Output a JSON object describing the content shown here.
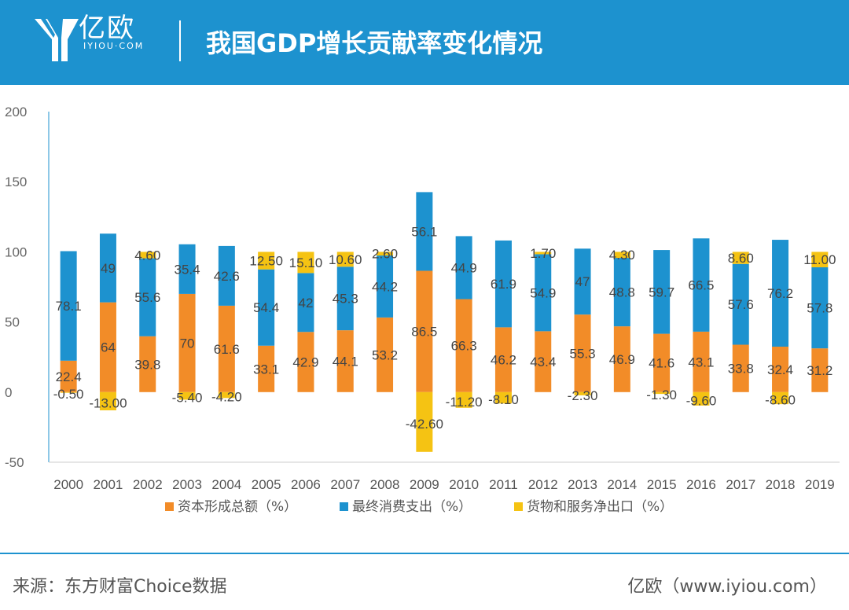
{
  "header": {
    "logo_text": "亿欧",
    "logo_sub": "IYIOU·COM",
    "title": "我国GDP增长贡献率变化情况"
  },
  "footer": {
    "source": "来源：东方财富Choice数据",
    "brand": "亿欧（www.iyiou.com）"
  },
  "colors": {
    "capital": "#f28c28",
    "consumption": "#1d92cf",
    "net_export": "#f5c313",
    "header_bg": "#1d92cf"
  },
  "chart_data": {
    "type": "bar",
    "stacked": true,
    "title": "",
    "xlabel": "",
    "ylabel": "",
    "ylim": [
      -50,
      200
    ],
    "yticks": [
      -50,
      0,
      50,
      100,
      150,
      200
    ],
    "legend_position": "bottom",
    "categories": [
      "2000",
      "2001",
      "2002",
      "2003",
      "2004",
      "2005",
      "2006",
      "2007",
      "2008",
      "2009",
      "2010",
      "2011",
      "2012",
      "2013",
      "2014",
      "2015",
      "2016",
      "2017",
      "2018",
      "2019"
    ],
    "series": [
      {
        "name": "资本形成总额（%）",
        "color": "#f28c28",
        "values": [
          22.4,
          64,
          39.8,
          70,
          61.6,
          33.1,
          42.9,
          44.1,
          53.2,
          86.5,
          66.3,
          46.2,
          43.4,
          55.3,
          46.9,
          41.6,
          43.1,
          33.8,
          32.4,
          31.2
        ],
        "labels": [
          "22.4",
          "64",
          "39.8",
          "70",
          "61.6",
          "33.1",
          "42.9",
          "44.1",
          "53.2",
          "86.5",
          "66.3",
          "46.2",
          "43.4",
          "55.3",
          "46.9",
          "41.6",
          "43.1",
          "33.8",
          "32.4",
          "31.2"
        ]
      },
      {
        "name": "最终消费支出（%）",
        "color": "#1d92cf",
        "values": [
          78.1,
          49,
          55.6,
          35.4,
          42.6,
          54.4,
          42,
          45.3,
          44.2,
          56.1,
          44.9,
          61.9,
          54.9,
          47,
          48.8,
          59.7,
          66.5,
          57.6,
          76.2,
          57.8
        ],
        "labels": [
          "78.1",
          "49",
          "55.6",
          "35.4",
          "42.6",
          "54.4",
          "42",
          "45.3",
          "44.2",
          "56.1",
          "44.9",
          "61.9",
          "54.9",
          "47",
          "48.8",
          "59.7",
          "66.5",
          "57.6",
          "76.2",
          "57.8"
        ]
      },
      {
        "name": "货物和服务净出口（%）",
        "color": "#f5c313",
        "values": [
          -0.5,
          -13,
          4.6,
          -5.4,
          -4.2,
          12.5,
          15.1,
          10.6,
          2.6,
          -42.6,
          -11.2,
          -8.1,
          1.7,
          -2.3,
          4.3,
          -1.3,
          -9.6,
          8.6,
          -8.6,
          11
        ],
        "labels": [
          "-0.50",
          "-13.00",
          "4.60",
          "-5.40",
          "-4.20",
          "12.50",
          "15.10",
          "10.60",
          "2.60",
          "-42.60",
          "-11.20",
          "-8.10",
          "1.70",
          "-2.30",
          "4.30",
          "-1.30",
          "-9.60",
          "8.60",
          "-8.60",
          "11.00"
        ]
      }
    ]
  }
}
